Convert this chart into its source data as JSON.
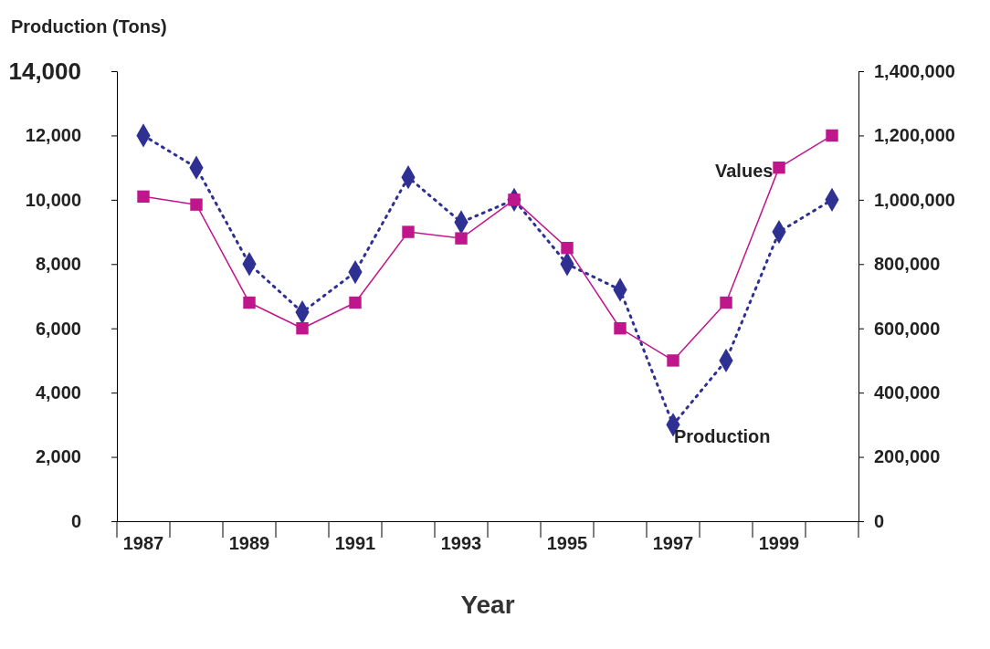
{
  "chart_data": {
    "type": "line",
    "ylabel": "Production (Tons)",
    "xlabel": "Year",
    "categories": [
      "1987",
      null,
      "1989",
      null,
      "1991",
      null,
      "1993",
      null,
      "1995",
      null,
      "1997",
      null,
      "1999",
      null
    ],
    "series": [
      {
        "name": "Production",
        "color": "#2e3192",
        "marker": "diamond",
        "line_style": "dotted",
        "values": [
          12000,
          11000,
          8000,
          6500,
          7750,
          10700,
          9300,
          10000,
          8000,
          7200,
          3000,
          5000,
          9000,
          10000
        ]
      },
      {
        "name": "Values",
        "color": "#c0168c",
        "marker": "square",
        "line_style": "solid",
        "axis": "y2",
        "values": [
          1010000,
          985000,
          680000,
          600000,
          680000,
          900000,
          880000,
          1000000,
          850000,
          600000,
          500000,
          680000,
          1100000,
          1200000
        ]
      }
    ],
    "ylim": [
      0,
      14000
    ],
    "yticks": [
      0,
      {
        "value": 2000,
        "label": "2,000"
      },
      {
        "value": 4000,
        "label": "4,000"
      },
      {
        "value": 6000,
        "label": "6,000"
      },
      {
        "value": 8000,
        "label": "8,000"
      },
      {
        "value": 10000,
        "label": "10,000"
      },
      {
        "value": 12000,
        "label": "12,000"
      },
      {
        "value": 14000,
        "label": "14,000"
      }
    ],
    "y2lim": [
      0,
      1400000
    ],
    "y2ticks": [
      0,
      {
        "value": 200000,
        "label": "200,000"
      },
      {
        "value": 400000,
        "label": "400,000"
      },
      {
        "value": 600000,
        "label": "600,000"
      },
      {
        "value": 800000,
        "label": "800,000"
      },
      {
        "value": 1000000,
        "label": "1,000,000"
      },
      {
        "value": 1200000,
        "label": "1,200,000"
      },
      {
        "value": 1400000,
        "label": "1,400,000"
      }
    ],
    "grid": false
  }
}
